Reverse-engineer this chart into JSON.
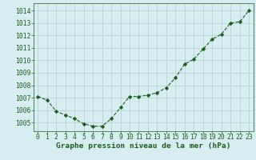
{
  "x": [
    0,
    1,
    2,
    3,
    4,
    5,
    6,
    7,
    8,
    9,
    10,
    11,
    12,
    13,
    14,
    15,
    16,
    17,
    18,
    19,
    20,
    21,
    22,
    23
  ],
  "y": [
    1007.1,
    1006.8,
    1005.9,
    1005.6,
    1005.3,
    1004.9,
    1004.7,
    1004.7,
    1005.3,
    1006.2,
    1007.1,
    1007.1,
    1007.2,
    1007.4,
    1007.8,
    1008.6,
    1009.7,
    1010.1,
    1010.9,
    1011.7,
    1012.1,
    1013.0,
    1013.1,
    1014.0
  ],
  "line_color": "#1a5c1a",
  "marker": "D",
  "marker_size": 2.2,
  "bg_color": "#d6eef2",
  "grid_color": "#b0cece",
  "xlabel": "Graphe pression niveau de la mer (hPa)",
  "xlabel_color": "#1a5c1a",
  "tick_color": "#1a5c1a",
  "ylim": [
    1004.3,
    1014.6
  ],
  "xlim": [
    -0.5,
    23.5
  ],
  "yticks": [
    1005,
    1006,
    1007,
    1008,
    1009,
    1010,
    1011,
    1012,
    1013,
    1014
  ],
  "xticks": [
    0,
    1,
    2,
    3,
    4,
    5,
    6,
    7,
    8,
    9,
    10,
    11,
    12,
    13,
    14,
    15,
    16,
    17,
    18,
    19,
    20,
    21,
    22,
    23
  ],
  "spine_color": "#1a5c1a",
  "xlabel_fontsize": 6.8,
  "tick_fontsize": 5.8
}
